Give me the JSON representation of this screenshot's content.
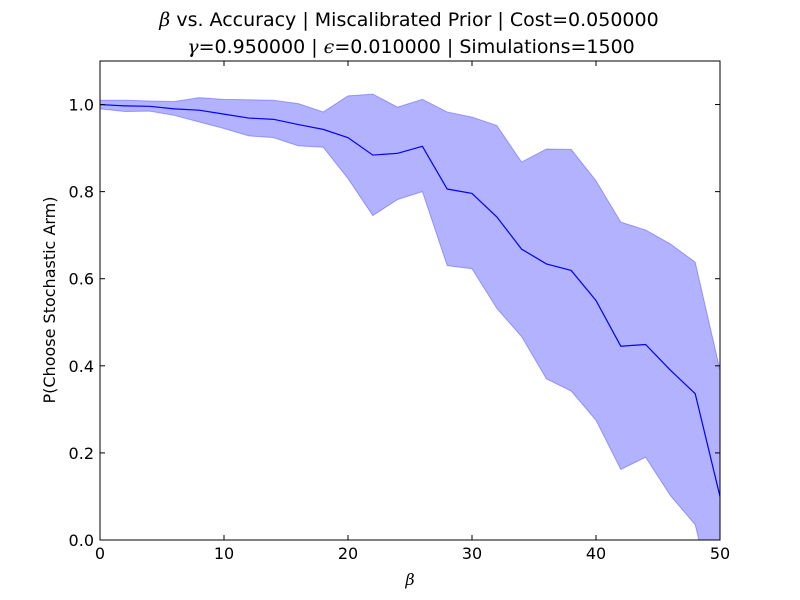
{
  "chart_data": {
    "type": "line",
    "title_line1": {
      "greek": "β",
      "rest": " vs. Accuracy | Miscalibrated Prior | Cost=0.050000"
    },
    "title_line2": {
      "gamma": "γ",
      "gamma_rest": "=0.950000 | ",
      "epsilon": "ϵ",
      "epsilon_rest": "=0.010000 | Simulations=1500"
    },
    "xlabel": "β",
    "ylabel": "P(Choose Stochastic Arm)",
    "xlim": [
      0,
      50
    ],
    "ylim": [
      0,
      1.1
    ],
    "xticks": [
      0,
      10,
      20,
      30,
      40,
      50
    ],
    "xtick_labels": [
      "0",
      "10",
      "20",
      "30",
      "40",
      "50"
    ],
    "yticks": [
      0.0,
      0.2,
      0.4,
      0.6,
      0.8,
      1.0
    ],
    "ytick_labels": [
      "0.0",
      "0.2",
      "0.4",
      "0.6",
      "0.8",
      "1.0"
    ],
    "grid": false,
    "line_color": "#0000ff",
    "band_color": "#0000ff",
    "x": [
      0,
      2,
      4,
      6,
      8,
      10,
      12,
      14,
      16,
      18,
      20,
      22,
      24,
      26,
      28,
      30,
      32,
      34,
      36,
      38,
      40,
      42,
      44,
      46,
      48,
      50
    ],
    "mean": [
      1.0,
      0.997,
      0.996,
      0.99,
      0.987,
      0.978,
      0.969,
      0.966,
      0.954,
      0.943,
      0.924,
      0.884,
      0.888,
      0.904,
      0.806,
      0.796,
      0.742,
      0.668,
      0.634,
      0.619,
      0.55,
      0.445,
      0.449,
      0.39,
      0.336,
      0.1
    ],
    "upper": [
      1.01,
      1.01,
      1.008,
      1.007,
      1.016,
      1.012,
      1.011,
      1.01,
      1.002,
      0.983,
      1.02,
      1.024,
      0.994,
      1.012,
      0.983,
      0.971,
      0.952,
      0.868,
      0.898,
      0.897,
      0.825,
      0.73,
      0.712,
      0.68,
      0.638,
      0.39
    ],
    "lower": [
      0.99,
      0.984,
      0.985,
      0.975,
      0.96,
      0.945,
      0.928,
      0.924,
      0.905,
      0.902,
      0.83,
      0.745,
      0.782,
      0.8,
      0.63,
      0.623,
      0.532,
      0.467,
      0.37,
      0.342,
      0.275,
      0.162,
      0.19,
      0.102,
      0.035,
      -0.2
    ]
  }
}
